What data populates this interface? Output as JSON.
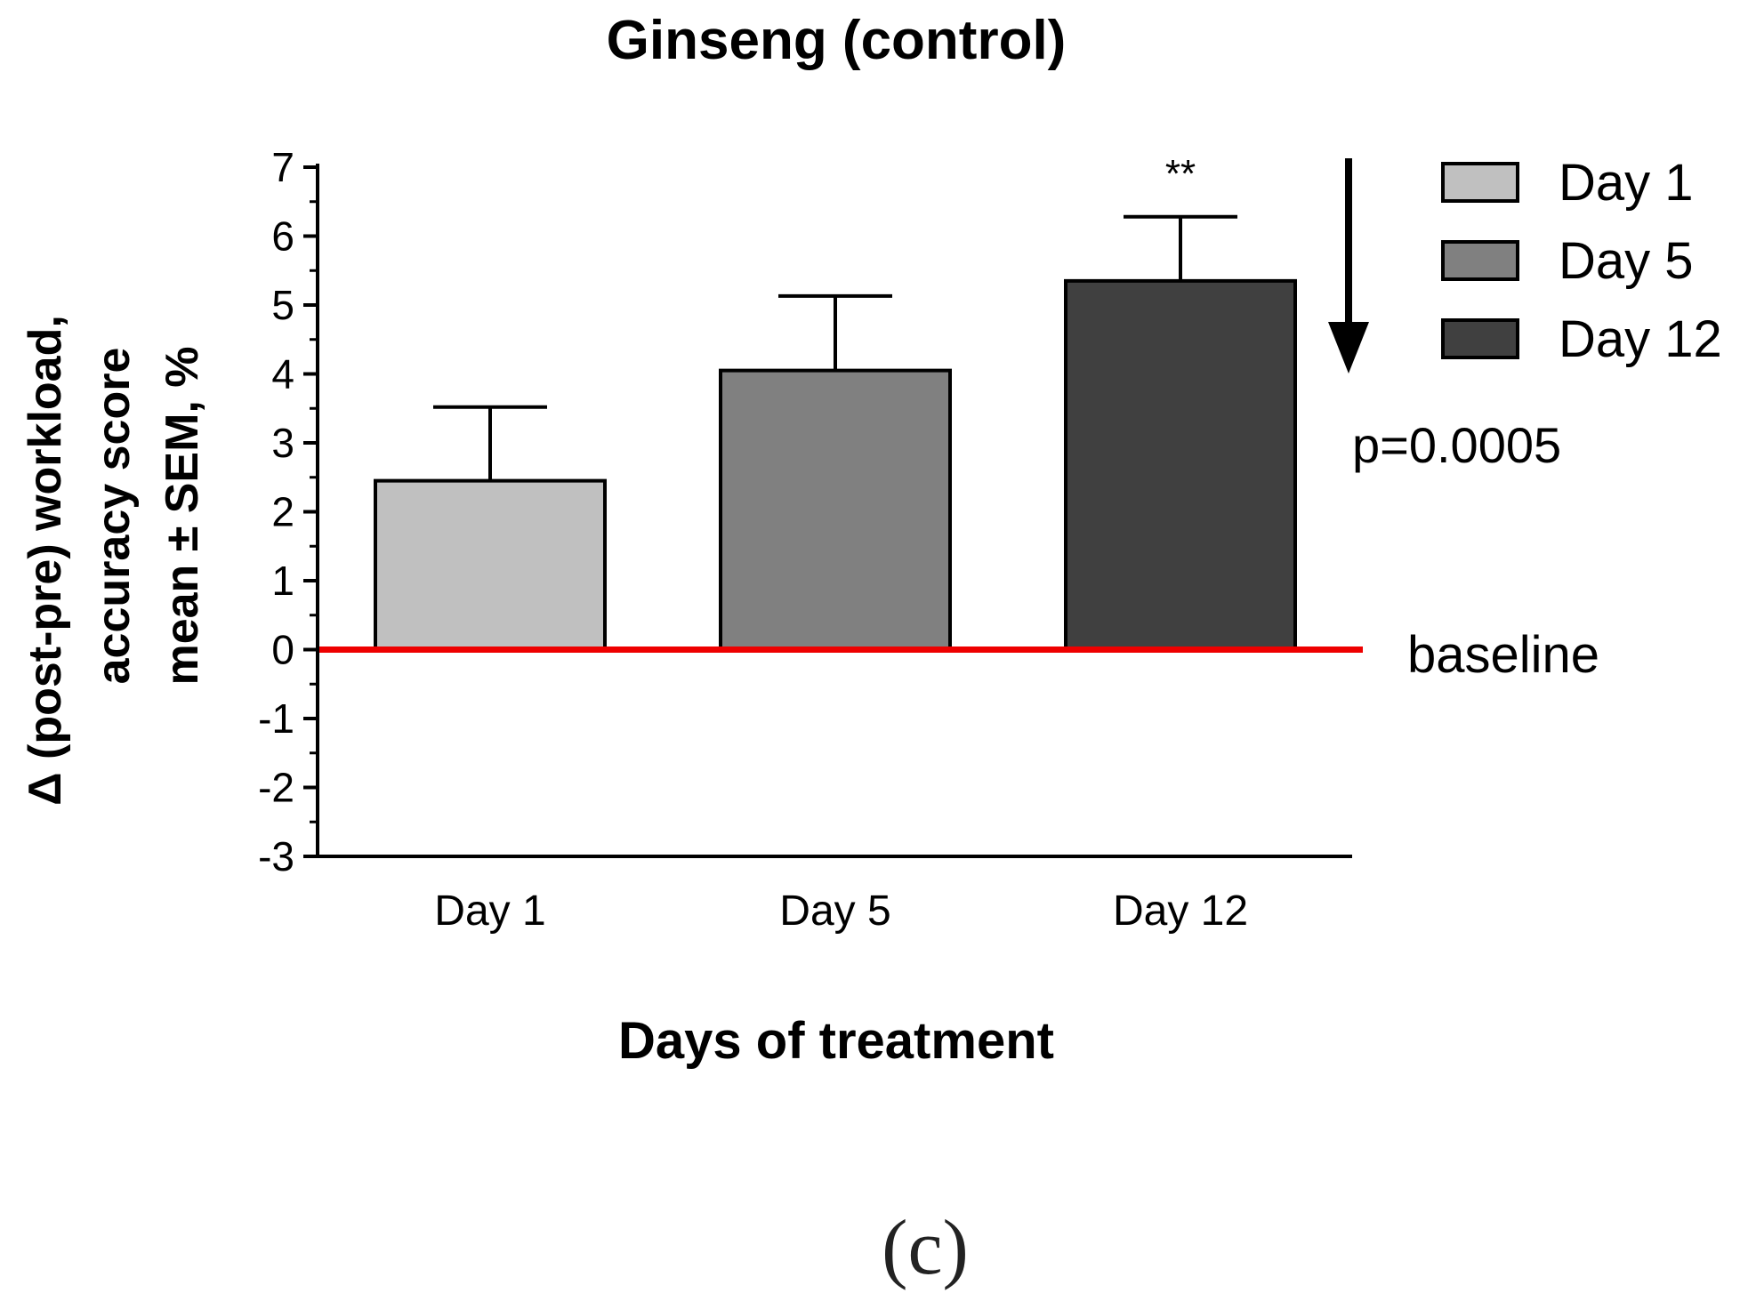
{
  "chart_data": {
    "type": "bar",
    "title": "Ginseng (control)",
    "xlabel": "Days of treatment",
    "ylabel_lines": [
      "Δ (post-pre) workload,",
      "accuracy score",
      "mean ± SEM, %"
    ],
    "categories": [
      "Day 1",
      "Day 5",
      "Day 12"
    ],
    "values": [
      2.45,
      4.05,
      5.35
    ],
    "errors": [
      1.07,
      1.08,
      0.93
    ],
    "bar_colors": [
      "#c0c0c0",
      "#808080",
      "#404040"
    ],
    "ylim": [
      -3,
      7
    ],
    "yticks": [
      "7",
      "6",
      "5",
      "4",
      "3",
      "2",
      "1",
      "0",
      "-1",
      "-2",
      "-3"
    ],
    "ytick_values": [
      7,
      6,
      5,
      4,
      3,
      2,
      1,
      0,
      -1,
      -2,
      -3
    ],
    "baseline_value": 0,
    "baseline_label": "baseline",
    "baseline_color": "#ee0000",
    "significance": "**",
    "significance_index": 2,
    "p_value": "p=0.0005",
    "legend": [
      {
        "label": "Day 1",
        "color": "#c0c0c0"
      },
      {
        "label": "Day 5",
        "color": "#808080"
      },
      {
        "label": "Day 12",
        "color": "#404040"
      }
    ],
    "legend_position": "top-right",
    "grid": false
  },
  "panel_label": "(c)"
}
